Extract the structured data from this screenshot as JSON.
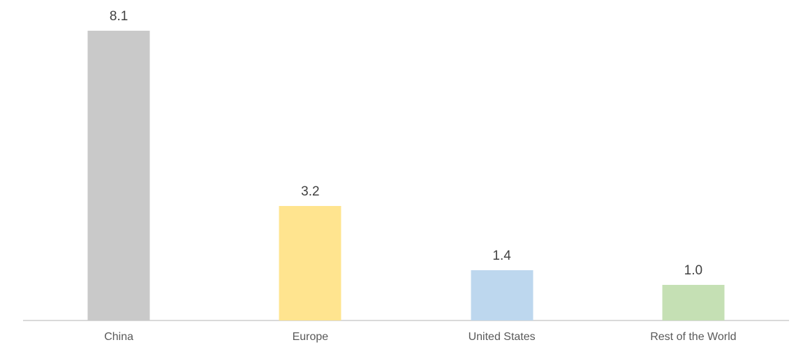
{
  "chart_data": {
    "type": "bar",
    "categories": [
      "China",
      "Europe",
      "United States",
      "Rest of the World"
    ],
    "values": [
      8.1,
      3.2,
      1.4,
      1.0
    ],
    "value_labels": [
      "8.1",
      "3.2",
      "1.4",
      "1.0"
    ],
    "bar_colors": [
      "#c9c9c9",
      "#ffe48f",
      "#bdd7ee",
      "#c5e0b4"
    ],
    "title": "",
    "xlabel": "",
    "ylabel": "",
    "ylim": [
      0,
      8.95
    ],
    "grid": false,
    "legend": false,
    "colors": {
      "background": "#ffffff",
      "axis_line": "#d9d9d9",
      "value_label_text": "#404040",
      "category_label_text": "#595959"
    }
  }
}
